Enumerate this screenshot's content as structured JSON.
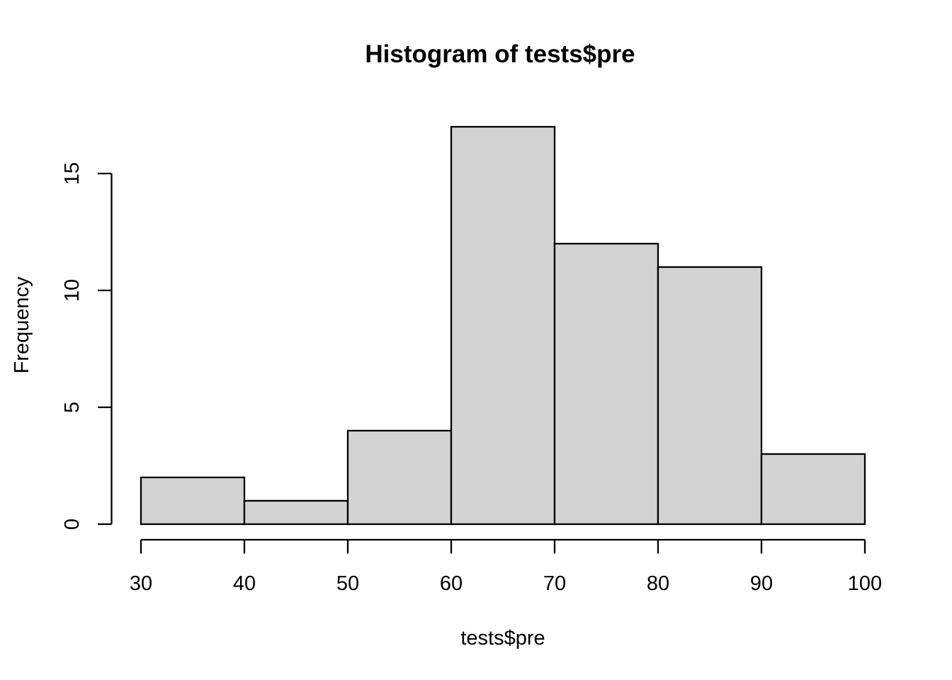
{
  "chart_data": {
    "type": "bar",
    "subtype": "histogram",
    "title": "Histogram of tests$pre",
    "xlabel": "tests$pre",
    "ylabel": "Frequency",
    "bin_breaks": [
      30,
      40,
      50,
      60,
      70,
      80,
      90,
      100
    ],
    "bin_counts": [
      2,
      1,
      4,
      17,
      12,
      11,
      3
    ],
    "x_ticks": [
      30,
      40,
      50,
      60,
      70,
      80,
      90,
      100
    ],
    "y_ticks": [
      0,
      5,
      10,
      15
    ],
    "x_tick_labels": [
      "30",
      "40",
      "50",
      "60",
      "70",
      "80",
      "90",
      "100"
    ],
    "y_tick_labels": [
      "0",
      "5",
      "10",
      "15"
    ],
    "xlim": [
      30,
      100
    ],
    "ylim": [
      0,
      17
    ],
    "grid": false,
    "legend_position": "none",
    "bar_fill": "#d3d3d3",
    "bar_stroke": "#000000",
    "axis_color": "#000000",
    "text_color": "#000000",
    "background": "#ffffff"
  }
}
